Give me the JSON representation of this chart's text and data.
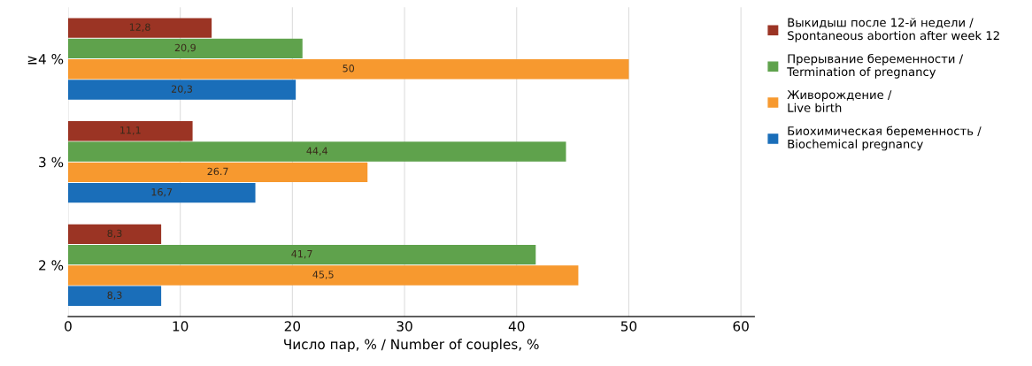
{
  "chart_data": {
    "type": "bar",
    "orientation": "horizontal",
    "categories": [
      "≥4 %",
      "3 %",
      "2 %"
    ],
    "series": [
      {
        "name": "Выкидыш после 12-й недели / Spontaneous abortion after week 12",
        "color": "#9b3424",
        "values": [
          12.8,
          11.1,
          8.3
        ],
        "value_labels": [
          "12,8",
          "11,1",
          "8,3"
        ]
      },
      {
        "name": "Прерывание беременности / Termination of pregnancy",
        "color": "#5fa24c",
        "values": [
          20.9,
          44.4,
          41.7
        ],
        "value_labels": [
          "20,9",
          "44,4",
          "41,7"
        ]
      },
      {
        "name": "Живорождение / Live birth",
        "color": "#f7992f",
        "values": [
          50,
          26.7,
          45.5
        ],
        "value_labels": [
          "50",
          "26.7",
          "45,5"
        ]
      },
      {
        "name": "Биохимическая беременность / Biochemical pregnancy",
        "color": "#1a6eb9",
        "values": [
          20.3,
          16.7,
          8.3
        ],
        "value_labels": [
          "20,3",
          "16,7",
          "8,3"
        ]
      }
    ],
    "xlabel": "Число пар, % / Number of couples, %",
    "xlim": [
      0,
      61.2
    ],
    "xticks": [
      0,
      10,
      20,
      30,
      40,
      50,
      60
    ],
    "grid": "x",
    "legend": "right"
  }
}
